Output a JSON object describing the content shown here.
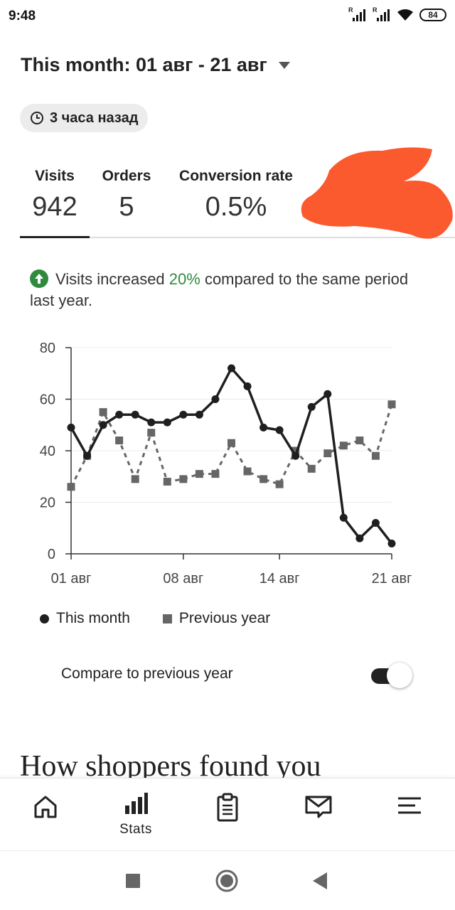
{
  "status_bar": {
    "time": "9:48",
    "battery": "84",
    "signal_marker": "R"
  },
  "header": {
    "date_range": "This month: 01 авг - 21 авг",
    "updated": "3 часа назад"
  },
  "metrics": [
    {
      "label": "Visits",
      "value": "942"
    },
    {
      "label": "Orders",
      "value": "5"
    },
    {
      "label": "Conversion rate",
      "value": "0.5%"
    }
  ],
  "insight": {
    "before": "Visits increased ",
    "percent": "20%",
    "after": " compared to the same period last year."
  },
  "chart_data": {
    "type": "line",
    "x": [
      "01 авг",
      "02 авг",
      "03 авг",
      "04 авг",
      "05 авг",
      "06 авг",
      "07 авг",
      "08 авг",
      "09 авг",
      "10 авг",
      "11 авг",
      "12 авг",
      "13 авг",
      "14 авг",
      "15 авг",
      "16 авг",
      "17 авг",
      "18 авг",
      "19 авг",
      "20 авг",
      "21 авг"
    ],
    "x_tick_labels": [
      "01 авг",
      "08 авг",
      "14 авг",
      "21 авг"
    ],
    "series": [
      {
        "name": "This month",
        "values": [
          49,
          38,
          50,
          54,
          54,
          51,
          51,
          54,
          54,
          60,
          72,
          65,
          49,
          48,
          38,
          57,
          62,
          14,
          6,
          12,
          4
        ]
      },
      {
        "name": "Previous year",
        "values": [
          26,
          38,
          55,
          44,
          29,
          47,
          28,
          29,
          31,
          31,
          43,
          32,
          29,
          27,
          40,
          33,
          39,
          42,
          44,
          38,
          58
        ]
      }
    ],
    "ylim": [
      0,
      80
    ],
    "yticks": [
      0,
      20,
      40,
      60,
      80
    ],
    "grid": true,
    "legend_position": "bottom"
  },
  "legend": {
    "this_month": "This month",
    "previous_year": "Previous year"
  },
  "compare": {
    "label": "Compare to previous year",
    "enabled": true
  },
  "section_title": "How shoppers found you",
  "bottom_nav": {
    "stats_label": "Stats",
    "items": [
      "home-icon",
      "stats-icon",
      "orders-icon",
      "messages-icon",
      "menu-icon"
    ]
  }
}
